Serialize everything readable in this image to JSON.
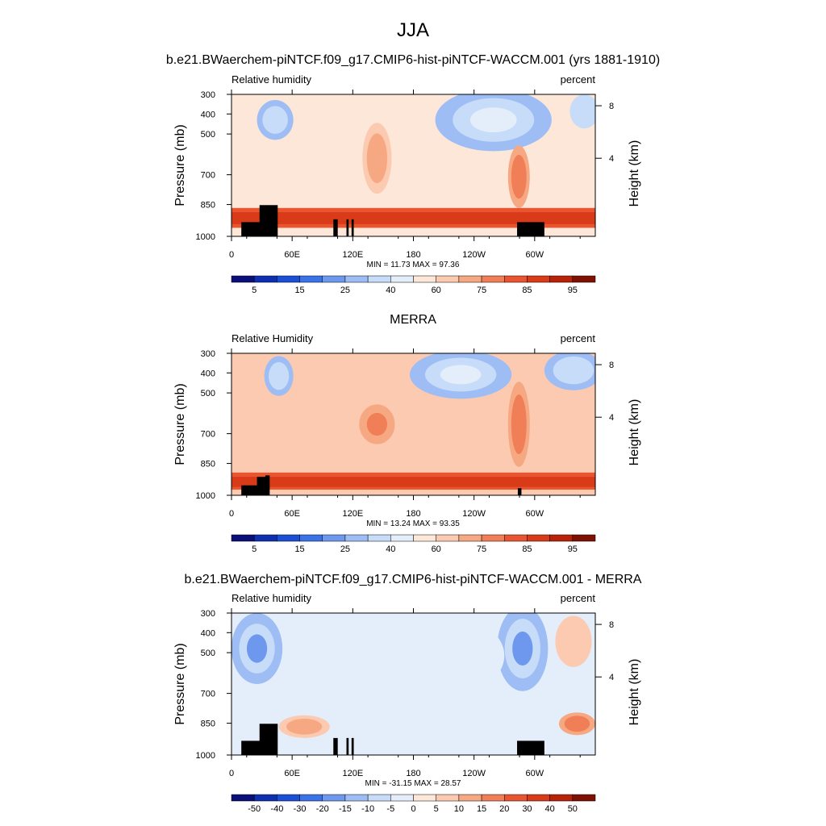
{
  "page_title": "JJA",
  "chart_data": [
    {
      "type": "heatmap",
      "title": "b.e21.BWaerchem-piNTCF.f09_g17.CMIP6-hist-piNTCF-WACCM.001 (yrs 1881-1910)",
      "left_label": "Relative humidity",
      "right_label": "percent",
      "xlabel": "",
      "ylabel": "Pressure (mb)",
      "ylabel_right": "Height (km)",
      "x_ticks": [
        "0",
        "60E",
        "120E",
        "180",
        "120W",
        "60W"
      ],
      "x_range_lon": [
        0,
        360
      ],
      "y_ticks": [
        300,
        400,
        500,
        700,
        850,
        1000
      ],
      "y_range": [
        300,
        1000
      ],
      "y_log": true,
      "height_ticks": [
        "8",
        "4"
      ],
      "stats_text": "MIN =  11.73  MAX =  97.36",
      "min": 11.73,
      "max": 97.36,
      "colorbar": {
        "labels": [
          "5",
          "15",
          "25",
          "40",
          "60",
          "75",
          "85",
          "95"
        ],
        "colors": [
          "#0a0f7a",
          "#0d2fb0",
          "#1a4fd6",
          "#3a73e8",
          "#6e98ee",
          "#9dbdf4",
          "#c6dcf8",
          "#e4eefb",
          "#fde7d8",
          "#fbcab0",
          "#f6a883",
          "#f07e56",
          "#e85530",
          "#d93a18",
          "#b72208",
          "#7e1004"
        ]
      }
    },
    {
      "type": "heatmap",
      "title": "MERRA",
      "left_label": "Relative Humidity",
      "right_label": "percent",
      "xlabel": "",
      "ylabel": "Pressure (mb)",
      "ylabel_right": "Height (km)",
      "x_ticks": [
        "0",
        "60E",
        "120E",
        "180",
        "120W",
        "60W"
      ],
      "x_range_lon": [
        0,
        360
      ],
      "y_ticks": [
        300,
        400,
        500,
        700,
        850,
        1000
      ],
      "y_range": [
        300,
        1000
      ],
      "y_log": true,
      "height_ticks": [
        "8",
        "4"
      ],
      "stats_text": "MIN =  13.24  MAX =  93.35",
      "min": 13.24,
      "max": 93.35,
      "colorbar": {
        "labels": [
          "5",
          "15",
          "25",
          "40",
          "60",
          "75",
          "85",
          "95"
        ],
        "colors": [
          "#0a0f7a",
          "#0d2fb0",
          "#1a4fd6",
          "#3a73e8",
          "#6e98ee",
          "#9dbdf4",
          "#c6dcf8",
          "#e4eefb",
          "#fde7d8",
          "#fbcab0",
          "#f6a883",
          "#f07e56",
          "#e85530",
          "#d93a18",
          "#b72208",
          "#7e1004"
        ]
      }
    },
    {
      "type": "heatmap",
      "title": "b.e21.BWaerchem-piNTCF.f09_g17.CMIP6-hist-piNTCF-WACCM.001 - MERRA",
      "left_label": "Relative humidity",
      "right_label": "percent",
      "xlabel": "",
      "ylabel": "Pressure (mb)",
      "ylabel_right": "Height (km)",
      "x_ticks": [
        "0",
        "60E",
        "120E",
        "180",
        "120W",
        "60W"
      ],
      "x_range_lon": [
        0,
        360
      ],
      "y_ticks": [
        300,
        400,
        500,
        700,
        850,
        1000
      ],
      "y_range": [
        300,
        1000
      ],
      "y_log": true,
      "height_ticks": [
        "8",
        "4"
      ],
      "stats_text": "MIN = -31.15  MAX =  28.57",
      "min": -31.15,
      "max": 28.57,
      "colorbar": {
        "labels": [
          "-50",
          "-40",
          "-30",
          "-20",
          "-15",
          "-10",
          "-5",
          "0",
          "5",
          "10",
          "15",
          "20",
          "30",
          "40",
          "50"
        ],
        "colors": [
          "#0a0f7a",
          "#0d2fb0",
          "#1a4fd6",
          "#3a73e8",
          "#6e98ee",
          "#9dbdf4",
          "#c6dcf8",
          "#e4eefb",
          "#fde7d8",
          "#fbcab0",
          "#f6a883",
          "#f07e56",
          "#e85530",
          "#d93a18",
          "#b72208",
          "#7e1004"
        ]
      }
    }
  ]
}
